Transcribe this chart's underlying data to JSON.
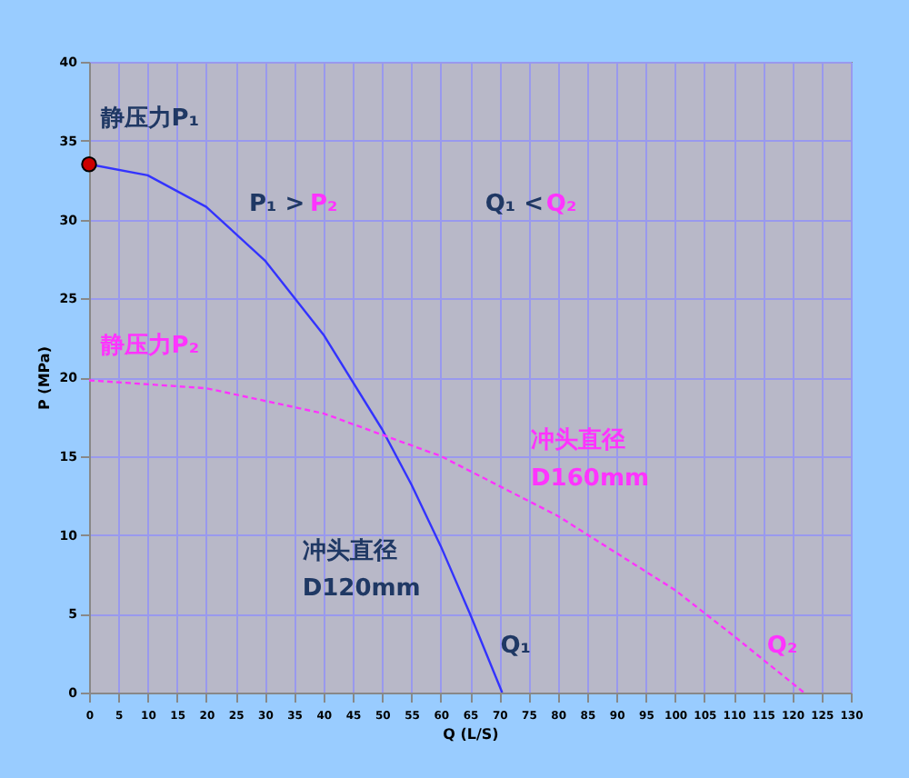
{
  "chart_data": {
    "type": "line",
    "xlabel": "Q (L/S)",
    "ylabel": "P (MPa)",
    "xlim": [
      0,
      130
    ],
    "xticks": [
      0,
      5,
      10,
      15,
      20,
      25,
      30,
      35,
      40,
      45,
      50,
      55,
      60,
      65,
      70,
      75,
      80,
      85,
      90,
      95,
      100,
      105,
      110,
      115,
      120,
      125,
      130
    ],
    "ylim": [
      0,
      40
    ],
    "yticks": [
      0,
      5,
      10,
      15,
      20,
      25,
      30,
      35,
      40
    ],
    "grid": true,
    "series": [
      {
        "color": "#3333ff",
        "line_style": "solid",
        "marker": "none",
        "x": [
          0,
          10,
          20,
          30,
          40,
          50,
          55,
          60,
          65,
          70.5
        ],
        "values": [
          33.5,
          32.8,
          30.8,
          27.4,
          22.7,
          16.7,
          13.2,
          9.3,
          5.0,
          0
        ]
      },
      {
        "color": "#ff33ff",
        "line_style": "dashed",
        "marker": "none",
        "x": [
          0,
          20,
          40,
          60,
          80,
          100,
          110,
          122
        ],
        "values": [
          19.8,
          19.3,
          17.7,
          15.0,
          11.2,
          6.5,
          3.6,
          0
        ]
      },
      {
        "type": "scatter",
        "color": "#cc0000",
        "marker": "circle",
        "x": [
          0
        ],
        "values": [
          33.5
        ]
      }
    ],
    "annotations": [
      "静压力P₁",
      "静压力P₂",
      "P₁ >",
      "P₂",
      "Q₁ <",
      "Q₂",
      "冲头直径",
      "D120mm",
      "冲头直径",
      "D160mm",
      "Q₁",
      "Q₂"
    ]
  }
}
